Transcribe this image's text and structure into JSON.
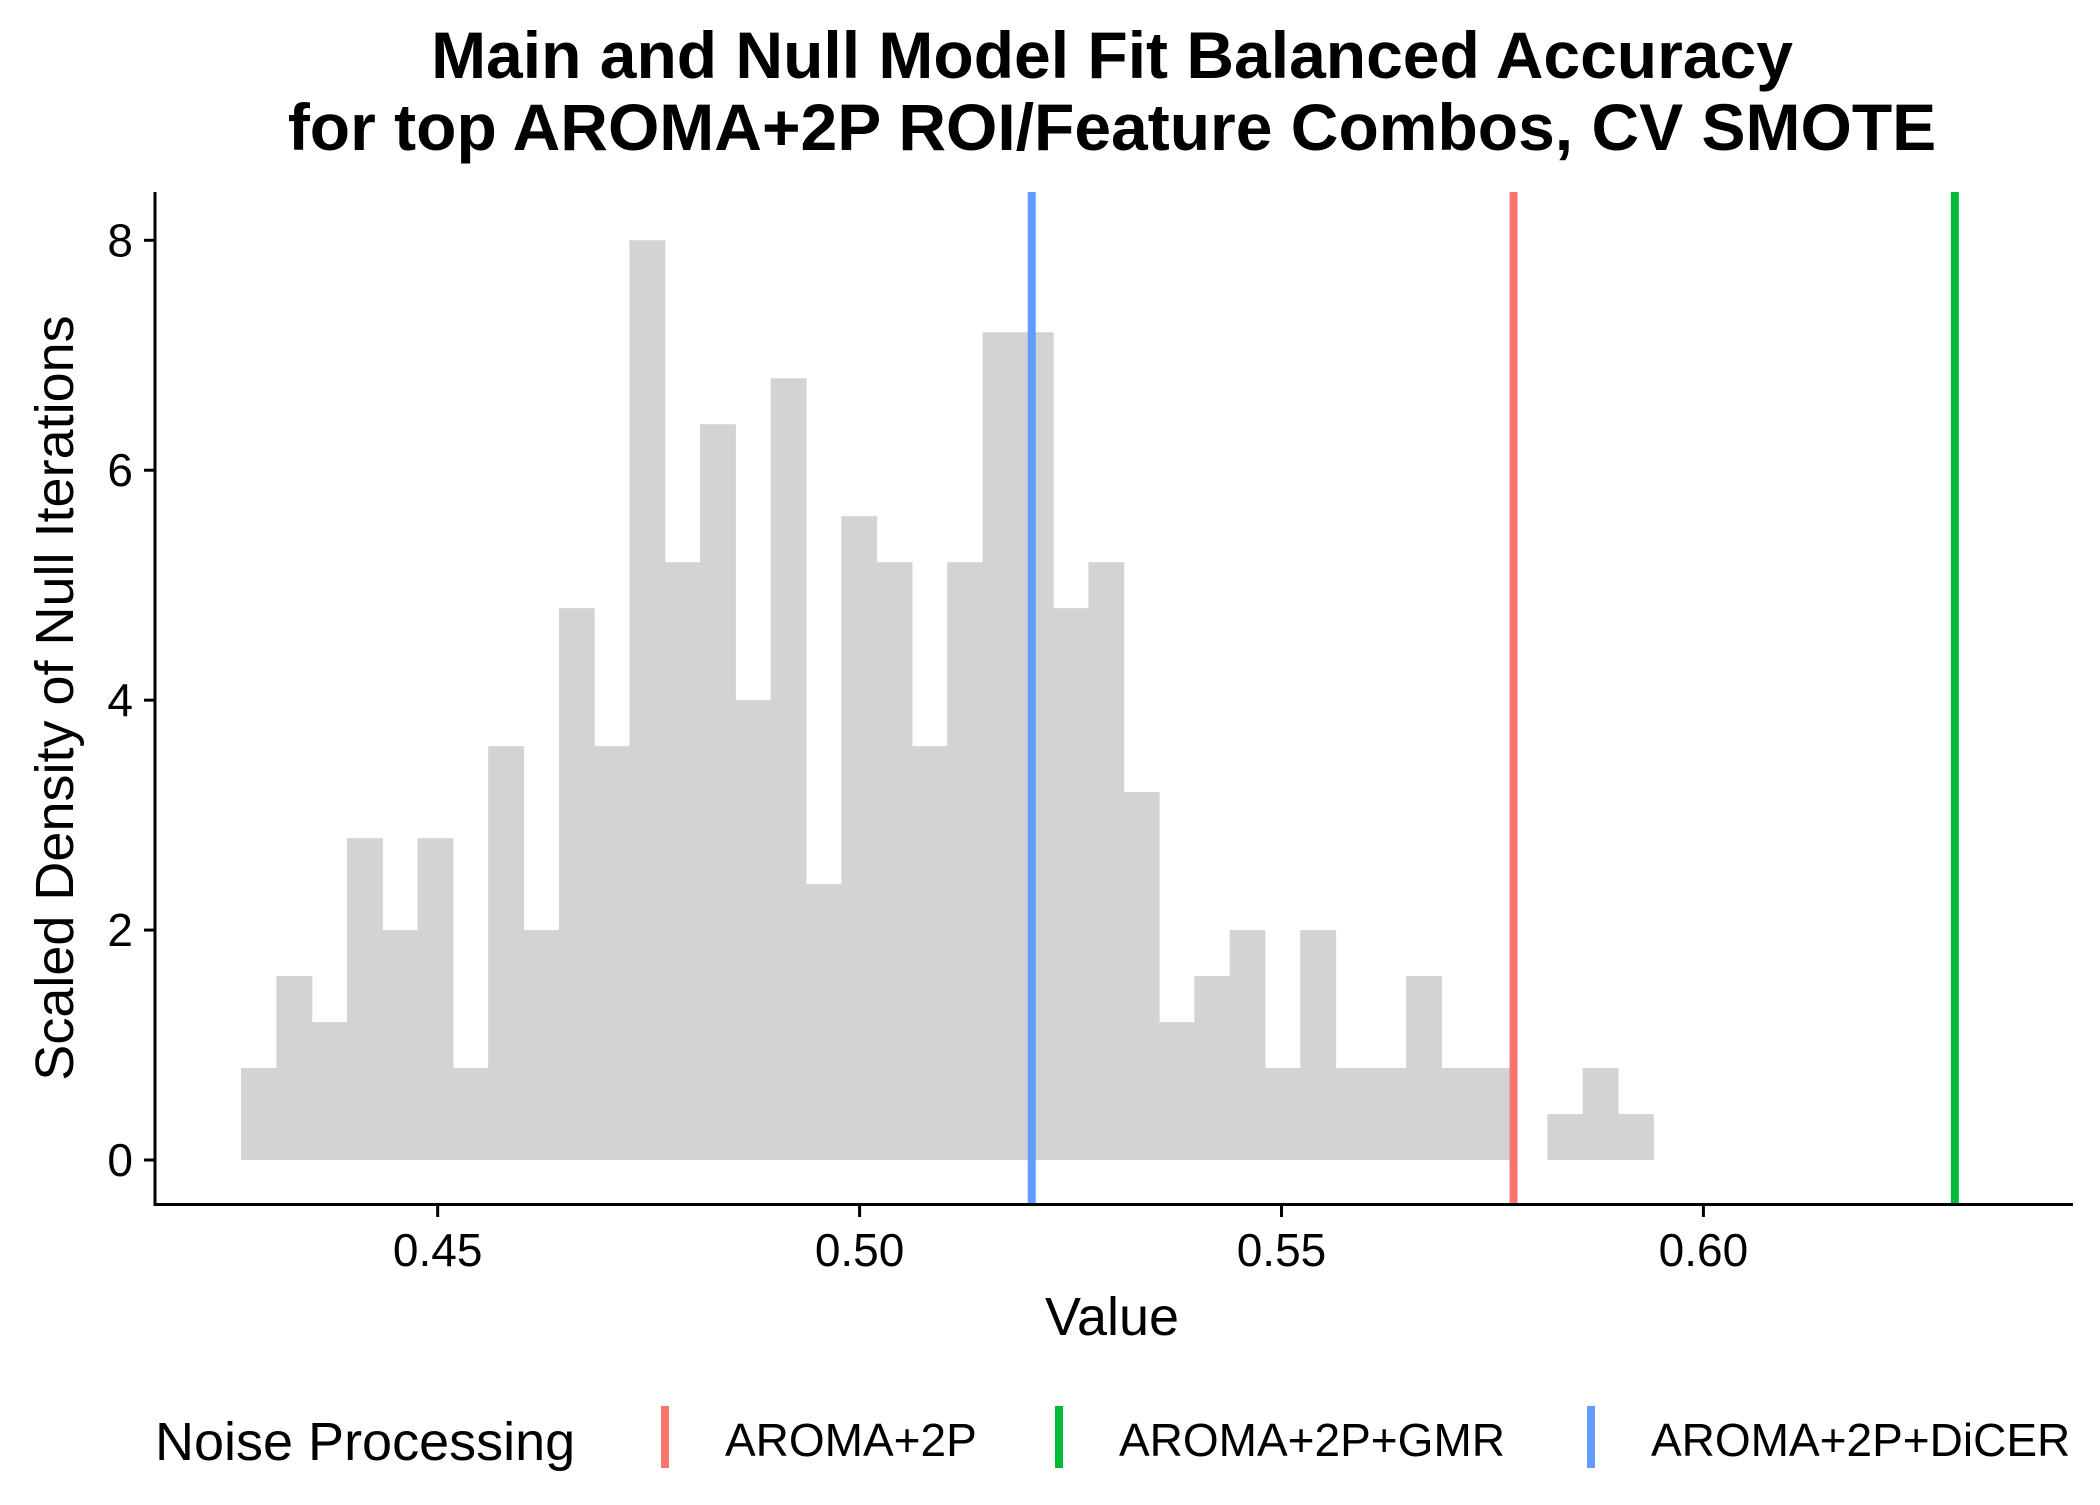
{
  "chart_data": {
    "type": "bar",
    "title_line1": "Main and Null Model Fit Balanced Accuracy",
    "title_line2": "for top AROMA+2P ROI/Feature Combos, CV SMOTE",
    "xlabel": "Value",
    "ylabel": "Scaled Density of Null Iterations",
    "xlim": [
      0.4165,
      0.6438
    ],
    "ylim": [
      -0.4,
      8.42
    ],
    "xticks": [
      0.45,
      0.5,
      0.55,
      0.6
    ],
    "xtick_labels": [
      "0.45",
      "0.50",
      "0.55",
      "0.60"
    ],
    "yticks": [
      0,
      2,
      4,
      6,
      8
    ],
    "ytick_labels": [
      "0",
      "2",
      "4",
      "6",
      "8"
    ],
    "bin_start": 0.4267,
    "bin_width": 0.004184,
    "values": [
      0.8,
      1.6,
      1.2,
      2.8,
      2.0,
      2.8,
      0.8,
      3.6,
      2.0,
      4.8,
      3.6,
      8.0,
      5.2,
      6.4,
      4.0,
      6.8,
      2.4,
      5.6,
      5.2,
      3.6,
      5.2,
      7.2,
      7.2,
      4.8,
      5.2,
      3.2,
      1.2,
      1.6,
      2.0,
      0.8,
      2.0,
      0.8,
      0.8,
      1.6,
      0.8,
      0.8,
      0.0,
      0.4,
      0.8,
      0.4
    ],
    "bar_color": "#d3d3d3",
    "vlines": [
      {
        "name": "AROMA+2P",
        "x": 0.5775,
        "color": "#F8766D"
      },
      {
        "name": "AROMA+2P+GMR",
        "x": 0.6298,
        "color": "#00BA38"
      },
      {
        "name": "AROMA+2P+DiCER",
        "x": 0.5204,
        "color": "#619CFF"
      }
    ],
    "legend": {
      "title": "Noise Processing",
      "position": "bottom",
      "items": [
        "AROMA+2P",
        "AROMA+2P+GMR",
        "AROMA+2P+DiCER"
      ]
    },
    "grid": false
  }
}
